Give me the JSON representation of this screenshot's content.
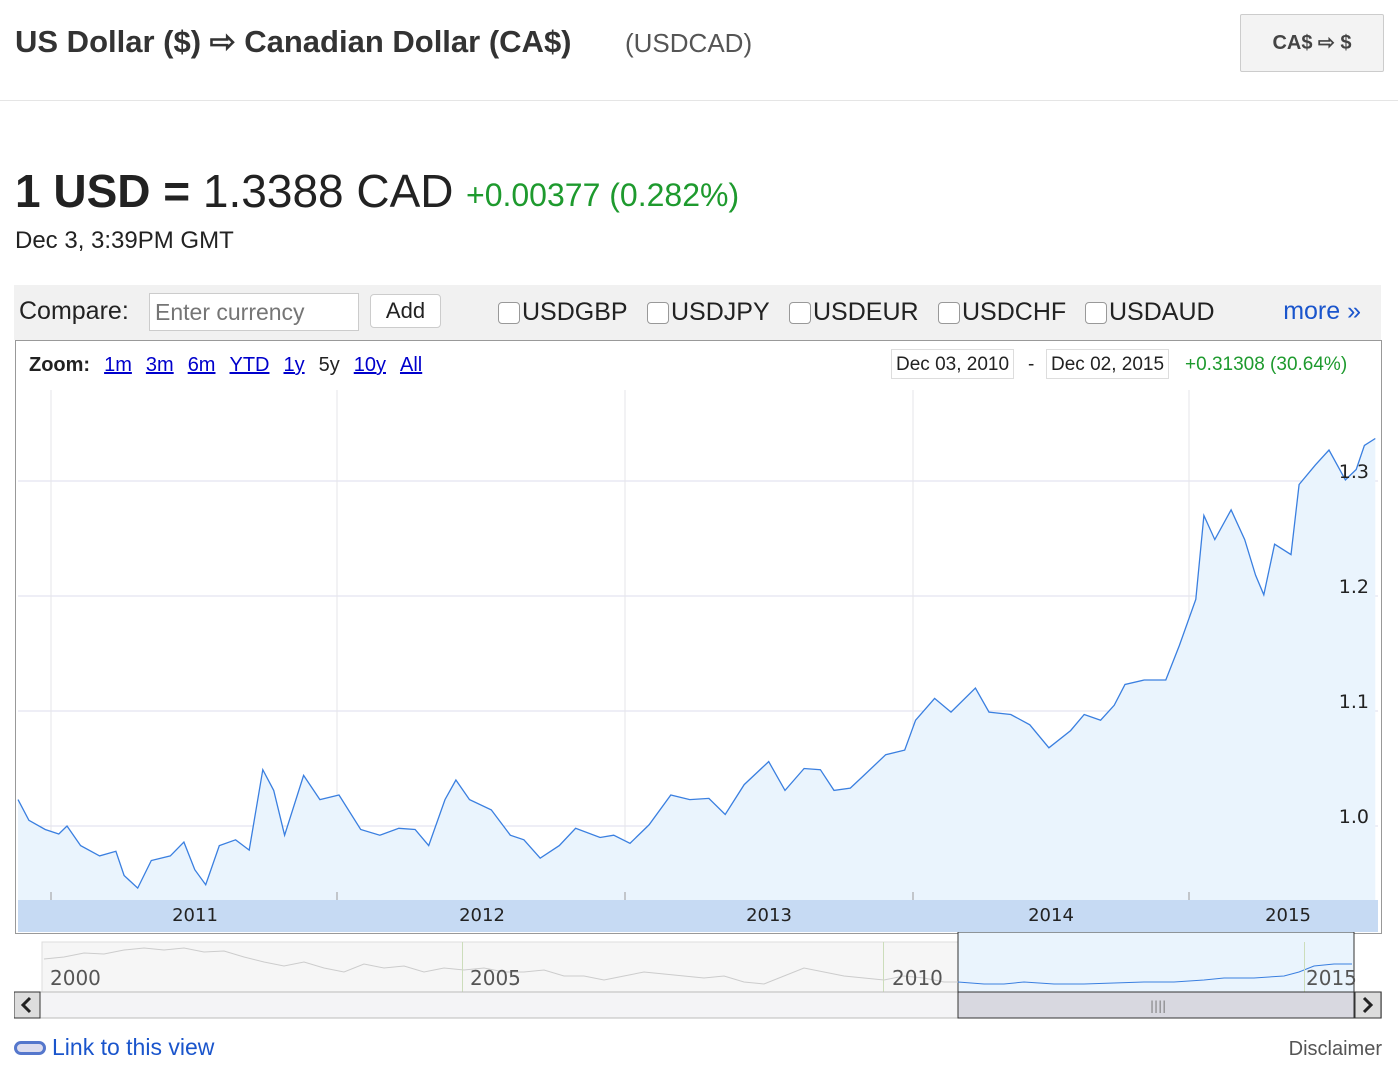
{
  "header": {
    "title": "US Dollar ($) ⇨ Canadian Dollar (CA$)",
    "symbol": "(USDCAD)",
    "swap_button": "CA$ ⇨ $"
  },
  "quote": {
    "lhs": "1 USD =",
    "rhs": "1.3388 CAD",
    "change": "+0.00377 (0.282%)",
    "timestamp": "Dec 3, 3:39PM GMT"
  },
  "compare": {
    "label": "Compare:",
    "placeholder": "Enter currency",
    "value": "",
    "add_label": "Add",
    "pairs": [
      "USDGBP",
      "USDJPY",
      "USDEUR",
      "USDCHF",
      "USDAUD"
    ],
    "more": "more »"
  },
  "zoom": {
    "label": "Zoom:",
    "options": [
      "1m",
      "3m",
      "6m",
      "YTD",
      "1y",
      "5y",
      "10y",
      "All"
    ],
    "selected": "5y"
  },
  "range": {
    "start": "Dec 03, 2010",
    "sep": "-",
    "end": "Dec 02, 2015",
    "change": "+0.31308 (30.64%)"
  },
  "colors": {
    "line": "#3a7fe0",
    "fill": "#eaf4fd",
    "positive": "#1e9a2e",
    "link": "#1a55cc"
  },
  "chart_data": {
    "type": "area",
    "x_ticks": [
      "2011",
      "2012",
      "2013",
      "2014",
      "2015"
    ],
    "y_ticks": [
      "1.0",
      "1.1",
      "1.2",
      "1.3"
    ],
    "ylim": [
      0.93,
      1.37
    ],
    "xlim": [
      2010.92,
      2015.92
    ],
    "grid": true,
    "series": [
      {
        "x": [
          2010.92,
          2010.96,
          2011.02,
          2011.07,
          2011.1,
          2011.15,
          2011.22,
          2011.28,
          2011.31,
          2011.36,
          2011.41,
          2011.48,
          2011.53,
          2011.57,
          2011.61,
          2011.66,
          2011.72,
          2011.77,
          2011.82,
          2011.86,
          2011.9,
          2011.97,
          2012.03,
          2012.1,
          2012.18,
          2012.25,
          2012.32,
          2012.38,
          2012.43,
          2012.49,
          2012.53,
          2012.58,
          2012.66,
          2012.73,
          2012.78,
          2012.84,
          2012.91,
          2012.97,
          2013.06,
          2013.11,
          2013.17,
          2013.24,
          2013.32,
          2013.39,
          2013.46,
          2013.52,
          2013.59,
          2013.68,
          2013.74,
          2013.81,
          2013.87,
          2013.92,
          2013.98,
          2014.03,
          2014.11,
          2014.18,
          2014.22,
          2014.29,
          2014.35,
          2014.44,
          2014.49,
          2014.57,
          2014.64,
          2014.71,
          2014.79,
          2014.84,
          2014.9,
          2014.95,
          2014.99,
          2015.06,
          2015.14,
          2015.19,
          2015.25,
          2015.28,
          2015.32,
          2015.38,
          2015.43,
          2015.47,
          2015.5,
          2015.54,
          2015.6,
          2015.63,
          2015.69,
          2015.74,
          2015.8,
          2015.84,
          2015.87,
          2015.91
        ],
        "y": [
          1.023,
          1.005,
          0.997,
          0.993,
          1.0,
          0.983,
          0.974,
          0.978,
          0.957,
          0.946,
          0.97,
          0.974,
          0.986,
          0.962,
          0.949,
          0.983,
          0.988,
          0.979,
          1.049,
          1.031,
          0.992,
          1.044,
          1.023,
          1.027,
          0.997,
          0.992,
          0.998,
          0.997,
          0.983,
          1.023,
          1.04,
          1.023,
          1.014,
          0.992,
          0.988,
          0.972,
          0.983,
          0.998,
          0.99,
          0.992,
          0.985,
          1.001,
          1.027,
          1.023,
          1.024,
          1.01,
          1.036,
          1.056,
          1.031,
          1.05,
          1.049,
          1.031,
          1.033,
          1.044,
          1.062,
          1.066,
          1.092,
          1.111,
          1.099,
          1.12,
          1.099,
          1.097,
          1.088,
          1.068,
          1.083,
          1.097,
          1.092,
          1.105,
          1.123,
          1.127,
          1.127,
          1.157,
          1.197,
          1.27,
          1.249,
          1.275,
          1.249,
          1.218,
          1.201,
          1.245,
          1.236,
          1.297,
          1.314,
          1.327,
          1.301,
          1.31,
          1.331,
          1.337
        ]
      }
    ]
  },
  "navigator": {
    "labels": [
      "2000",
      "2005",
      "2010",
      "2015"
    ]
  },
  "footer": {
    "link": "Link to this view",
    "disclaimer": "Disclaimer"
  }
}
